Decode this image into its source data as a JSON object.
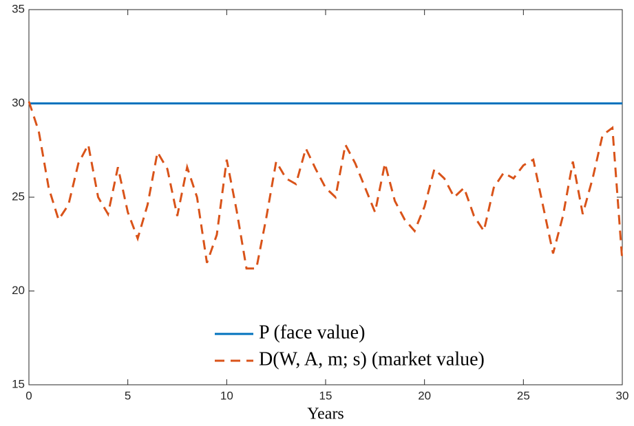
{
  "chart_data": {
    "type": "line",
    "xlabel": "Years",
    "x": [
      0,
      0.5,
      1,
      1.5,
      2,
      2.5,
      3,
      3.5,
      4,
      4.5,
      5,
      5.5,
      6,
      6.5,
      7,
      7.5,
      8,
      8.5,
      9,
      9.5,
      10,
      10.5,
      11,
      11.5,
      12,
      12.5,
      13,
      13.5,
      14,
      14.5,
      15,
      15.5,
      16,
      16.5,
      17,
      17.5,
      18,
      18.5,
      19,
      19.5,
      20,
      20.5,
      21,
      21.5,
      22,
      22.5,
      23,
      23.5,
      24,
      24.5,
      25,
      25.5,
      26,
      26.5,
      27,
      27.5,
      28,
      28.5,
      29,
      29.5,
      30
    ],
    "series": [
      {
        "name": "P (face value)",
        "color": "#0072bd",
        "style": "solid",
        "values": [
          30,
          30,
          30,
          30,
          30,
          30,
          30,
          30,
          30,
          30,
          30,
          30,
          30,
          30,
          30,
          30,
          30,
          30,
          30,
          30,
          30,
          30,
          30,
          30,
          30,
          30,
          30,
          30,
          30,
          30,
          30,
          30,
          30,
          30,
          30,
          30,
          30,
          30,
          30,
          30,
          30,
          30,
          30,
          30,
          30,
          30,
          30,
          30,
          30,
          30,
          30,
          30,
          30,
          30,
          30,
          30,
          30,
          30,
          30,
          30,
          30
        ]
      },
      {
        "name": "D(W, A, m; s) (market value)",
        "color": "#d95319",
        "style": "dashed",
        "values": [
          30.1,
          28.5,
          25.5,
          23.8,
          24.6,
          26.8,
          27.8,
          25.0,
          24.1,
          26.6,
          24.2,
          22.8,
          24.6,
          27.4,
          26.5,
          24.0,
          26.6,
          25.0,
          21.5,
          23.0,
          27.0,
          24.3,
          21.2,
          21.2,
          23.9,
          26.9,
          26.0,
          25.7,
          27.6,
          26.5,
          25.5,
          25.0,
          27.8,
          26.8,
          25.5,
          24.2,
          26.8,
          24.8,
          23.8,
          23.2,
          24.5,
          26.5,
          26.0,
          25.0,
          25.5,
          24.0,
          23.2,
          25.5,
          26.3,
          26.0,
          26.7,
          27.0,
          24.5,
          22.0,
          24.0,
          26.9,
          24.1,
          26.0,
          28.3,
          28.7,
          21.6
        ]
      }
    ],
    "xlim": [
      0,
      30
    ],
    "xticks": [
      0,
      5,
      10,
      15,
      20,
      25,
      30
    ],
    "ylim": [
      15,
      35
    ],
    "yticks": [
      15,
      20,
      25,
      30,
      35
    ],
    "grid": false,
    "legend": "lower right"
  }
}
